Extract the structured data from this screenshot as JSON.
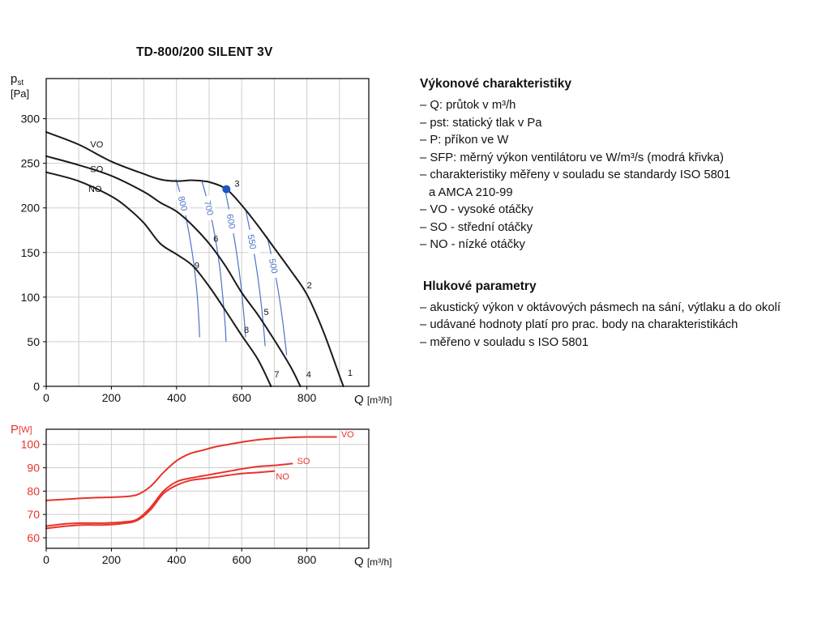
{
  "info": {
    "section1": {
      "heading": "Výkonové charakteristiky",
      "lines": [
        "– Q: průtok v m³/h",
        "– pst: statický tlak v Pa",
        "– P: příkon ve W",
        "– SFP: měrný výkon ventilátoru ve W/m³/s (modrá křivka)",
        "– charakteristiky měřeny v souladu se standardy ISO 5801",
        "a AMCA 210-99",
        "– VO - vysoké otáčky",
        "– SO - střední otáčky",
        "– NO - nízké otáčky"
      ]
    },
    "section2": {
      "heading": "Hlukové parametry",
      "lines": [
        "– akustický výkon v oktávových pásmech na sání, výtlaku a do okolí",
        "– udávané hodnoty platí pro prac. body na charakteristikách",
        "– měřeno v souladu s ISO 5801"
      ]
    }
  },
  "chart_data": [
    {
      "type": "line",
      "title": "TD-800/200 SILENT 3V",
      "xlabel": {
        "sym": "Q",
        "unit": "[m³/h]"
      },
      "ylabel": {
        "sym": "p",
        "sub": "st",
        "unit": "[Pa]"
      },
      "xlim": [
        0,
        990
      ],
      "ylim": [
        0,
        345
      ],
      "xticks": [
        0,
        200,
        400,
        600,
        800
      ],
      "yticks": [
        0,
        50,
        100,
        150,
        200,
        250,
        300
      ],
      "grid_x_step": 100,
      "grid_y_step": 50,
      "grid": true,
      "curve_color": "#1a1a1a",
      "sfp_color": "#4a74c9",
      "marker": {
        "q": 553,
        "p": 221,
        "color": "#2053c4"
      },
      "series": [
        {
          "name": "VO",
          "label_at": {
            "q": 155,
            "p": 268
          },
          "points": [
            [
              0,
              285
            ],
            [
              100,
              271
            ],
            [
              200,
              252
            ],
            [
              300,
              238
            ],
            [
              350,
              232
            ],
            [
              400,
              230
            ],
            [
              450,
              231
            ],
            [
              500,
              229
            ],
            [
              553,
              221
            ],
            [
              600,
              203
            ],
            [
              650,
              180
            ],
            [
              700,
              155
            ],
            [
              750,
              130
            ],
            [
              800,
              103
            ],
            [
              850,
              62
            ],
            [
              900,
              12
            ],
            [
              912,
              0
            ]
          ]
        },
        {
          "name": "SO",
          "label_at": {
            "q": 155,
            "p": 240
          },
          "points": [
            [
              0,
              258
            ],
            [
              100,
              248
            ],
            [
              200,
              236
            ],
            [
              300,
              218
            ],
            [
              350,
              206
            ],
            [
              400,
              196
            ],
            [
              450,
              180
            ],
            [
              500,
              160
            ],
            [
              550,
              135
            ],
            [
              600,
              105
            ],
            [
              650,
              80
            ],
            [
              700,
              52
            ],
            [
              750,
              22
            ],
            [
              780,
              0
            ]
          ]
        },
        {
          "name": "NO",
          "label_at": {
            "q": 150,
            "p": 218
          },
          "points": [
            [
              0,
              240
            ],
            [
              100,
              230
            ],
            [
              200,
              213
            ],
            [
              250,
              200
            ],
            [
              300,
              183
            ],
            [
              350,
              160
            ],
            [
              400,
              148
            ],
            [
              450,
              135
            ],
            [
              500,
              112
            ],
            [
              550,
              85
            ],
            [
              600,
              57
            ],
            [
              650,
              30
            ],
            [
              690,
              0
            ]
          ]
        }
      ],
      "sfp_curves": [
        {
          "label": "800",
          "points": [
            [
              398,
              232
            ],
            [
              420,
              205
            ],
            [
              438,
              172
            ],
            [
              452,
              140
            ],
            [
              462,
              108
            ],
            [
              468,
              78
            ],
            [
              471,
              55
            ]
          ]
        },
        {
          "label": "700",
          "points": [
            [
              478,
              230
            ],
            [
              500,
              200
            ],
            [
              518,
              168
            ],
            [
              532,
              135
            ],
            [
              542,
              100
            ],
            [
              549,
              70
            ],
            [
              552,
              50
            ]
          ]
        },
        {
          "label": "600",
          "points": [
            [
              548,
              222
            ],
            [
              568,
              185
            ],
            [
              585,
              148
            ],
            [
              598,
              112
            ],
            [
              607,
              78
            ],
            [
              612,
              55
            ]
          ]
        },
        {
          "label": "550",
          "points": [
            [
              612,
              198
            ],
            [
              632,
              162
            ],
            [
              648,
              126
            ],
            [
              660,
              92
            ],
            [
              668,
              62
            ],
            [
              672,
              45
            ]
          ]
        },
        {
          "label": "500",
          "points": [
            [
              678,
              168
            ],
            [
              698,
              135
            ],
            [
              714,
              103
            ],
            [
              726,
              72
            ],
            [
              734,
              48
            ],
            [
              738,
              35
            ]
          ]
        }
      ],
      "point_labels": [
        {
          "text": "1",
          "q": 925,
          "p": 12
        },
        {
          "text": "2",
          "q": 800,
          "p": 110
        },
        {
          "text": "3",
          "q": 578,
          "p": 224
        },
        {
          "text": "4",
          "q": 798,
          "p": 10
        },
        {
          "text": "5",
          "q": 668,
          "p": 80
        },
        {
          "text": "6",
          "q": 513,
          "p": 162
        },
        {
          "text": "7",
          "q": 700,
          "p": 10
        },
        {
          "text": "8",
          "q": 607,
          "p": 60
        },
        {
          "text": "9",
          "q": 455,
          "p": 132
        }
      ]
    },
    {
      "type": "line",
      "xlabel": {
        "sym": "Q",
        "unit": "[m³/h]"
      },
      "ylabel": {
        "sym": "P",
        "unit": "[W]"
      },
      "accent": "#e8332a",
      "xlim": [
        0,
        990
      ],
      "ylim": [
        55.5,
        106.5
      ],
      "xticks": [
        0,
        200,
        400,
        600,
        800
      ],
      "yticks": [
        60,
        70,
        80,
        90,
        100
      ],
      "grid_x_step": 100,
      "grid_y_step": 10,
      "grid": true,
      "series": [
        {
          "name": "VO",
          "label_at": {
            "q": 905,
            "p": 103
          },
          "points": [
            [
              0,
              76
            ],
            [
              60,
              76.5
            ],
            [
              120,
              77
            ],
            [
              180,
              77.3
            ],
            [
              240,
              77.6
            ],
            [
              280,
              78.5
            ],
            [
              320,
              82
            ],
            [
              360,
              88
            ],
            [
              400,
              93
            ],
            [
              440,
              96
            ],
            [
              480,
              97.5
            ],
            [
              520,
              99
            ],
            [
              560,
              100
            ],
            [
              600,
              101
            ],
            [
              650,
              102
            ],
            [
              700,
              102.6
            ],
            [
              750,
              103
            ],
            [
              800,
              103.2
            ],
            [
              850,
              103.2
            ],
            [
              890,
              103.2
            ]
          ]
        },
        {
          "name": "SO",
          "label_at": {
            "q": 770,
            "p": 91.5
          },
          "points": [
            [
              0,
              65
            ],
            [
              60,
              66
            ],
            [
              120,
              66.3
            ],
            [
              180,
              66.3
            ],
            [
              240,
              66.8
            ],
            [
              280,
              68
            ],
            [
              320,
              73
            ],
            [
              360,
              80
            ],
            [
              400,
              84
            ],
            [
              440,
              85.5
            ],
            [
              480,
              86.5
            ],
            [
              520,
              87.5
            ],
            [
              560,
              88.5
            ],
            [
              600,
              89.5
            ],
            [
              650,
              90.5
            ],
            [
              700,
              91
            ],
            [
              755,
              91.8
            ]
          ]
        },
        {
          "name": "NO",
          "label_at": {
            "q": 705,
            "p": 85
          },
          "points": [
            [
              0,
              64
            ],
            [
              60,
              65
            ],
            [
              120,
              65.5
            ],
            [
              180,
              65.5
            ],
            [
              240,
              66.2
            ],
            [
              280,
              67.5
            ],
            [
              320,
              72
            ],
            [
              360,
              79
            ],
            [
              400,
              82.5
            ],
            [
              440,
              84.5
            ],
            [
              480,
              85.3
            ],
            [
              520,
              86
            ],
            [
              560,
              86.8
            ],
            [
              600,
              87.5
            ],
            [
              650,
              88
            ],
            [
              700,
              88.6
            ]
          ]
        }
      ]
    }
  ]
}
